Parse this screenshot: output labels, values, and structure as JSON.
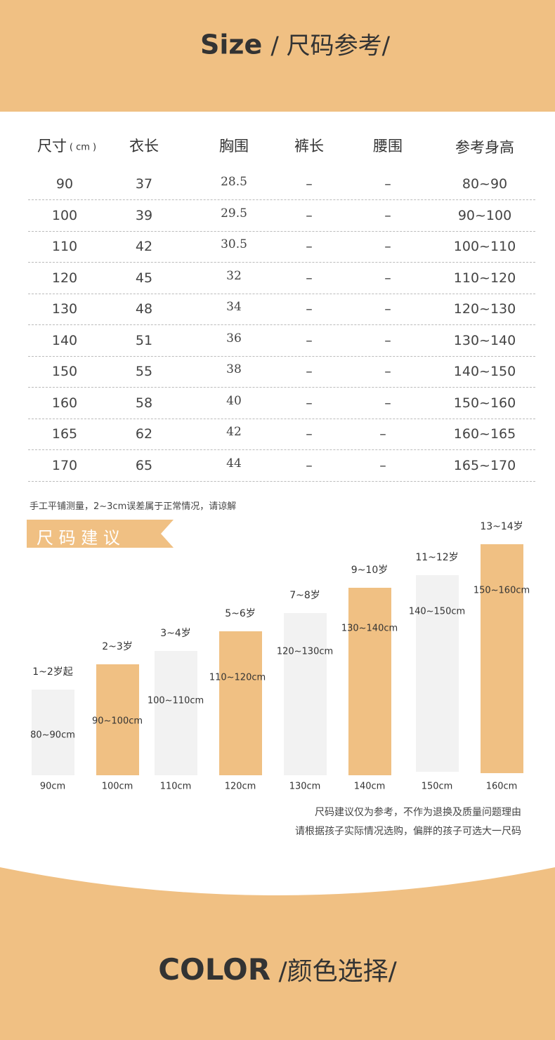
{
  "header": {
    "title": "Size",
    "subtitle": "/ 尺码参考/"
  },
  "table": {
    "columns": [
      "尺寸",
      "衣长",
      "胸围",
      "裤长",
      "腰围",
      "参考身高"
    ],
    "unit": "( cm )",
    "rows": [
      [
        "90",
        "37",
        "28.5",
        "–",
        "–",
        "80~90"
      ],
      [
        "100",
        "39",
        "29.5",
        "–",
        "–",
        "90~100"
      ],
      [
        "110",
        "42",
        "30.5",
        "–",
        "–",
        "100~110"
      ],
      [
        "120",
        "45",
        "32",
        "–",
        "–",
        "110~120"
      ],
      [
        "130",
        "48",
        "34",
        "–",
        "–",
        "120~130"
      ],
      [
        "140",
        "51",
        "36",
        "–",
        "–",
        "130~140"
      ],
      [
        "150",
        "55",
        "38",
        "–",
        "–",
        "140~150"
      ],
      [
        "160",
        "58",
        "40",
        "–",
        "–",
        "150~160"
      ],
      [
        "165",
        "62",
        "42",
        "–",
        "–",
        "160~165"
      ],
      [
        "170",
        "65",
        "44",
        "–",
        "–",
        "165~170"
      ]
    ]
  },
  "note": "手工平铺测量，2~3cm误差属于正常情况，请谅解",
  "recommend": {
    "label": "尺 码 建 议",
    "bars": [
      {
        "age": "1~2岁起",
        "range": "80~90cm",
        "size": "90cm"
      },
      {
        "age": "2~3岁",
        "range": "90~100cm",
        "size": "100cm"
      },
      {
        "age": "3~4岁",
        "range": "100~110cm",
        "size": "110cm"
      },
      {
        "age": "5~6岁",
        "range": "110~120cm",
        "size": "120cm"
      },
      {
        "age": "7~8岁",
        "range": "120~130cm",
        "size": "130cm"
      },
      {
        "age": "9~10岁",
        "range": "130~140cm",
        "size": "140cm"
      },
      {
        "age": "11~12岁",
        "range": "140~150cm",
        "size": "150cm"
      },
      {
        "age": "13~14岁",
        "range": "150~160cm",
        "size": "160cm"
      }
    ]
  },
  "notes": [
    "尺码建议仅为参考，不作为退换及质量问题理由",
    "请根据孩子实际情况选购，偏胖的孩子可选大一尺码"
  ],
  "footer": {
    "title": "COLOR",
    "subtitle": "/颜色选择/"
  }
}
